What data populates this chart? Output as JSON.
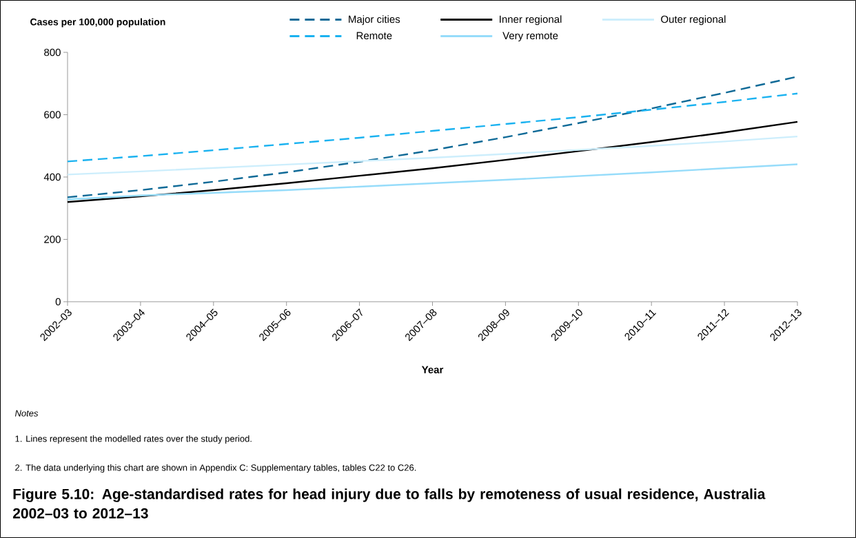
{
  "chart_data": {
    "type": "line",
    "title": "Figure 5.10: Age-standardised rates for head injury due to falls by remoteness of usual residence, Australia 2002–03 to 2012–13",
    "xlabel": "Year",
    "ylabel": "Cases per 100,000 population",
    "categories": [
      "2002–03",
      "2003–04",
      "2004–05",
      "2005–06",
      "2006–07",
      "2007–08",
      "2008–09",
      "2009–10",
      "2010–11",
      "2011–12",
      "2012–13"
    ],
    "series": [
      {
        "name": "Major cities",
        "color": "#0f6a97",
        "line_style": "dashed",
        "values": [
          335,
          358,
          385,
          415,
          449,
          486,
          528,
          573,
          620,
          670,
          722
        ]
      },
      {
        "name": "Inner regional",
        "color": "#000000",
        "line_style": "solid",
        "values": [
          320,
          338,
          358,
          380,
          404,
          428,
          455,
          483,
          512,
          543,
          577
        ]
      },
      {
        "name": "Outer regional",
        "color": "#cdeefc",
        "line_style": "solid",
        "values": [
          408,
          418,
          429,
          440,
          451,
          462,
          474,
          487,
          500,
          514,
          530
        ]
      },
      {
        "name": "Remote",
        "color": "#1ab2f0",
        "line_style": "dashed",
        "values": [
          450,
          467,
          486,
          506,
          526,
          548,
          570,
          592,
          616,
          641,
          668
        ]
      },
      {
        "name": "Very remote",
        "color": "#96dcfa",
        "line_style": "solid",
        "values": [
          328,
          341,
          349,
          358,
          369,
          380,
          391,
          403,
          415,
          428,
          441
        ]
      }
    ],
    "ylim": [
      0,
      800
    ],
    "yticks": [
      0,
      200,
      400,
      600,
      800
    ],
    "legend": "top",
    "marker": "none",
    "annotations": [
      "Notes",
      "1. Lines represent the modelled rates over the study period.",
      "2. The data underlying this chart are shown in Appendix C: Supplementary tables, tables C22 to C26."
    ]
  }
}
